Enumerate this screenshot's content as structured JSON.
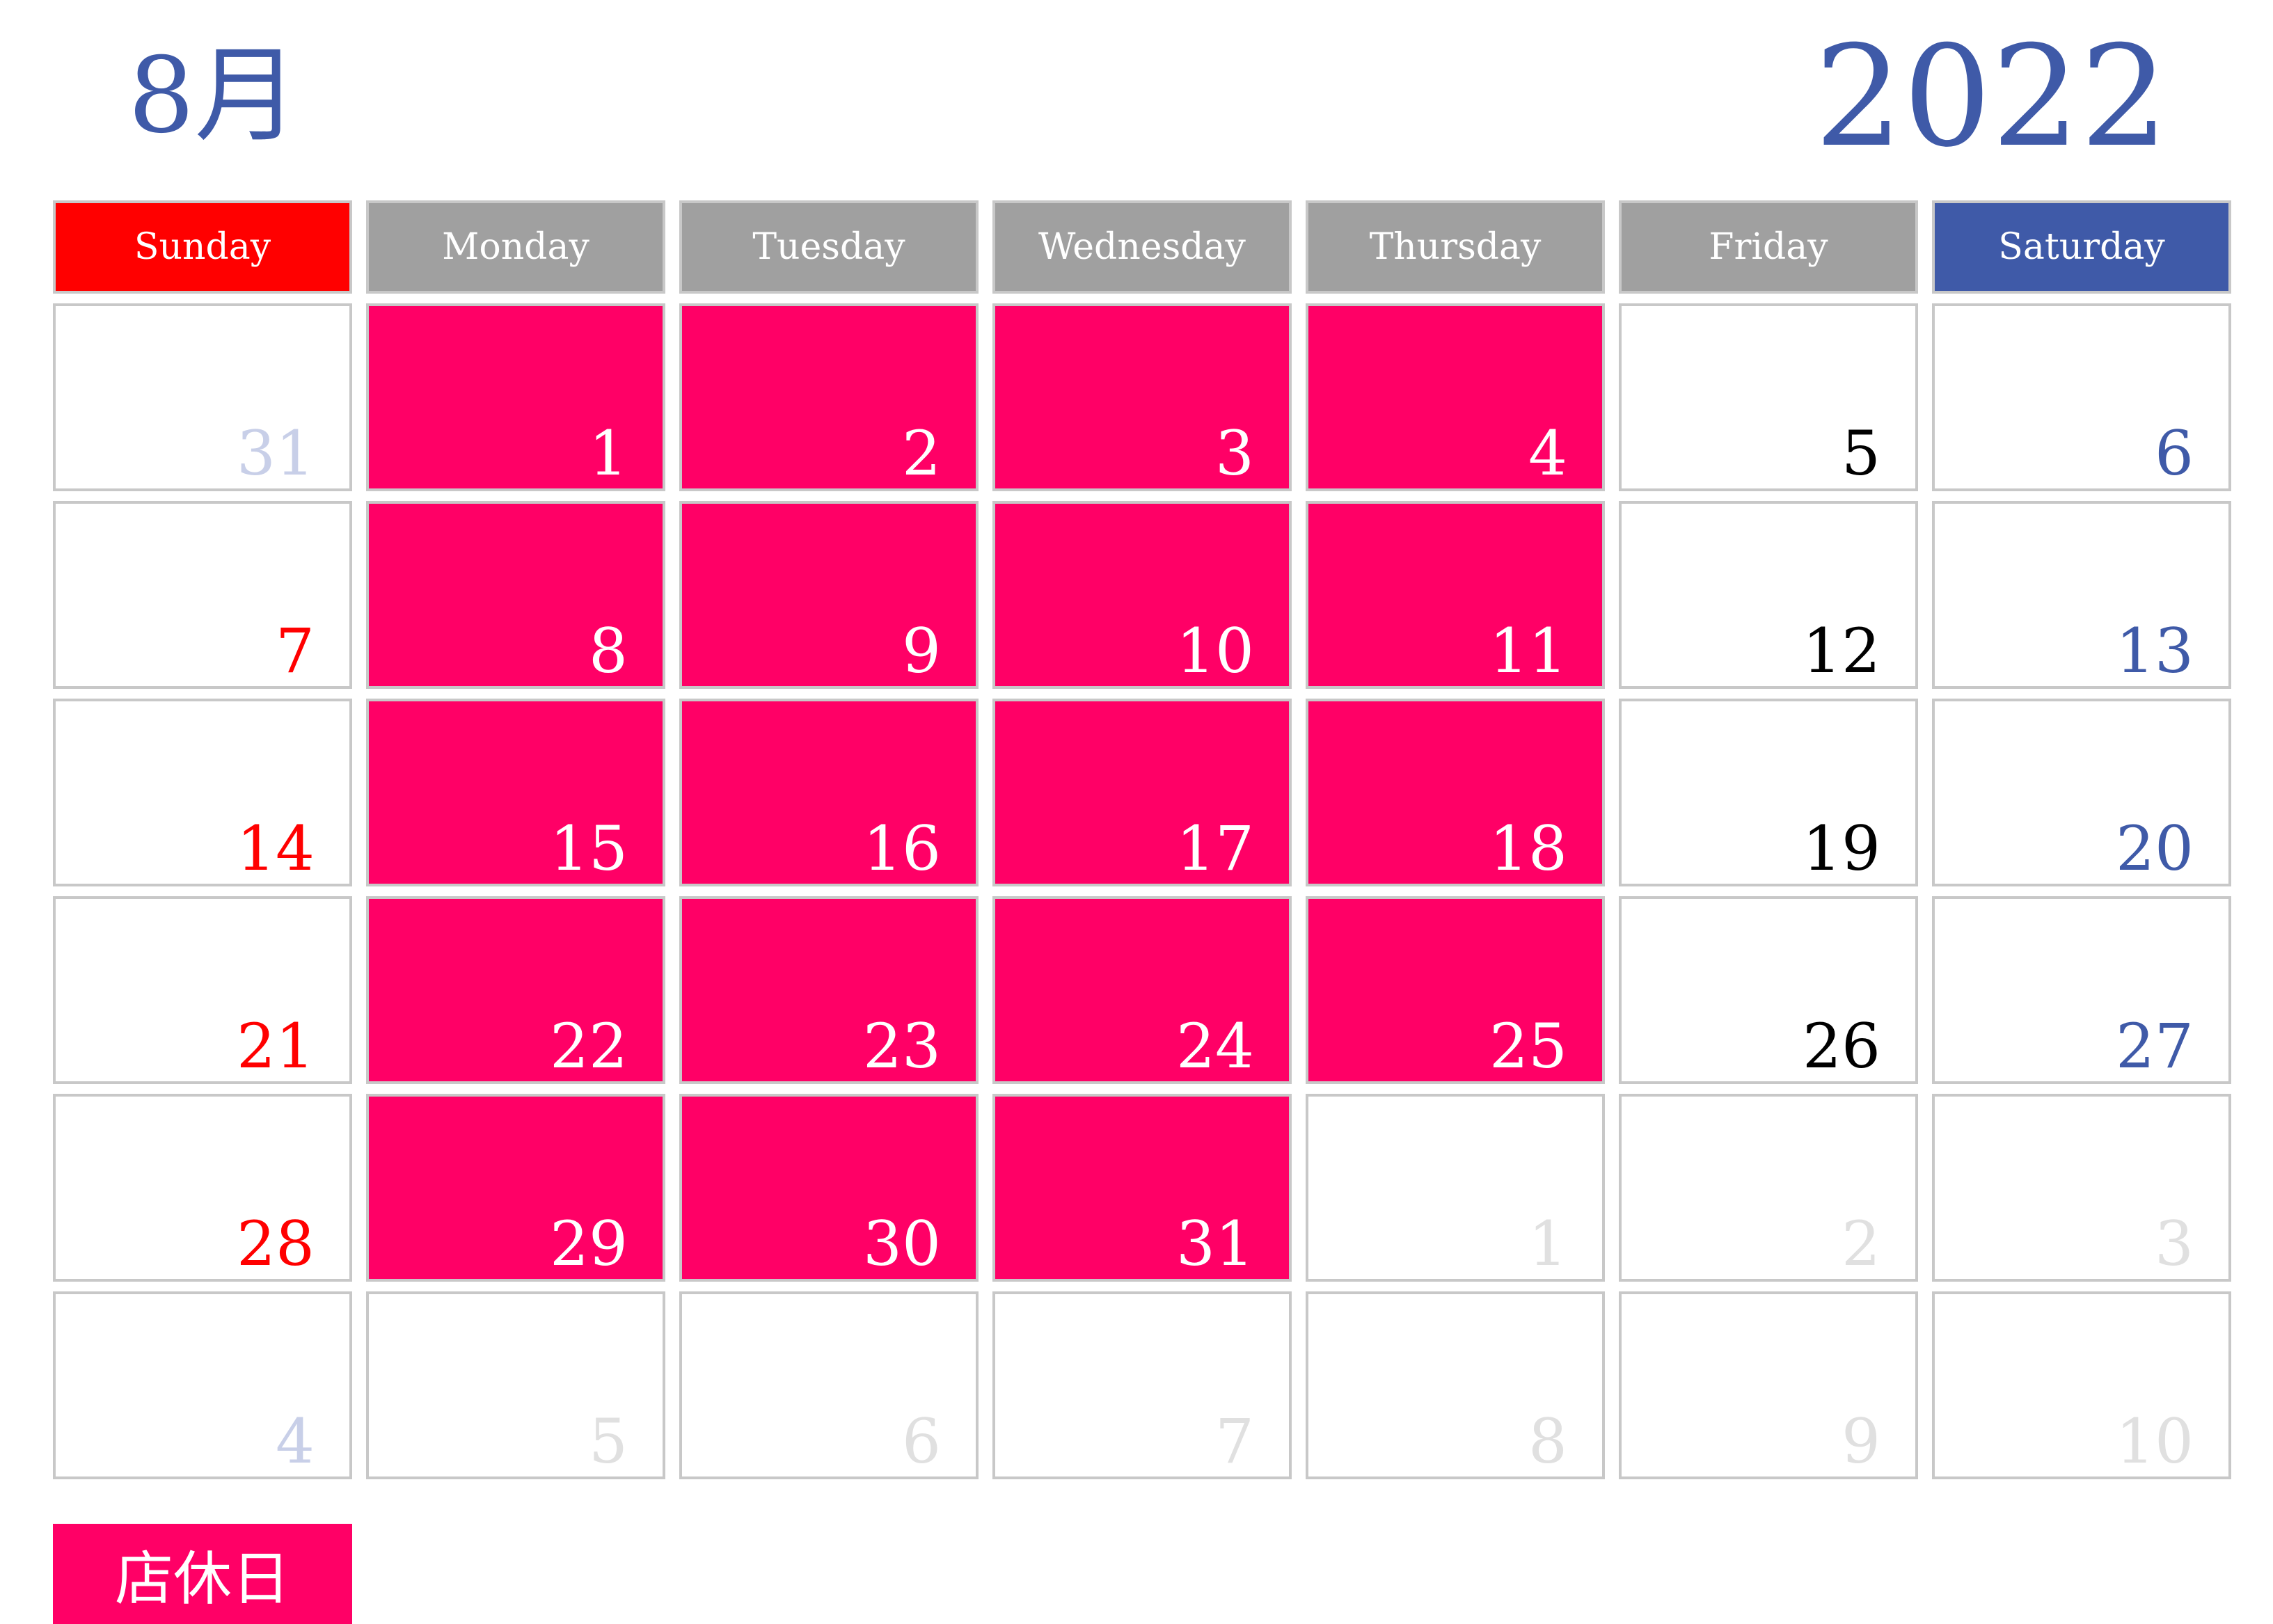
{
  "header": {
    "month": "8月",
    "year": "2022"
  },
  "weekdays": [
    "Sunday",
    "Monday",
    "Tuesday",
    "Wednesday",
    "Thursday",
    "Friday",
    "Saturday"
  ],
  "colors": {
    "title": "#3f5aa8",
    "sunday": "#ff0000",
    "saturday": "#3f5aa8",
    "closed_day": "#ff0066",
    "weekday_header": "#a0a0a0"
  },
  "weeks": [
    [
      {
        "day": "31",
        "state": "other-sun"
      },
      {
        "day": "1",
        "state": "closed"
      },
      {
        "day": "2",
        "state": "closed"
      },
      {
        "day": "3",
        "state": "closed"
      },
      {
        "day": "4",
        "state": "closed"
      },
      {
        "day": "5",
        "state": "weekday"
      },
      {
        "day": "6",
        "state": "saturday"
      }
    ],
    [
      {
        "day": "7",
        "state": "sunday"
      },
      {
        "day": "8",
        "state": "closed"
      },
      {
        "day": "9",
        "state": "closed"
      },
      {
        "day": "10",
        "state": "closed"
      },
      {
        "day": "11",
        "state": "closed"
      },
      {
        "day": "12",
        "state": "weekday"
      },
      {
        "day": "13",
        "state": "saturday"
      }
    ],
    [
      {
        "day": "14",
        "state": "sunday"
      },
      {
        "day": "15",
        "state": "closed"
      },
      {
        "day": "16",
        "state": "closed"
      },
      {
        "day": "17",
        "state": "closed"
      },
      {
        "day": "18",
        "state": "closed"
      },
      {
        "day": "19",
        "state": "weekday"
      },
      {
        "day": "20",
        "state": "saturday"
      }
    ],
    [
      {
        "day": "21",
        "state": "sunday"
      },
      {
        "day": "22",
        "state": "closed"
      },
      {
        "day": "23",
        "state": "closed"
      },
      {
        "day": "24",
        "state": "closed"
      },
      {
        "day": "25",
        "state": "closed"
      },
      {
        "day": "26",
        "state": "weekday"
      },
      {
        "day": "27",
        "state": "saturday"
      }
    ],
    [
      {
        "day": "28",
        "state": "sunday"
      },
      {
        "day": "29",
        "state": "closed"
      },
      {
        "day": "30",
        "state": "closed"
      },
      {
        "day": "31",
        "state": "closed"
      },
      {
        "day": "1",
        "state": "other"
      },
      {
        "day": "2",
        "state": "other"
      },
      {
        "day": "3",
        "state": "other"
      }
    ],
    [
      {
        "day": "4",
        "state": "other-sun"
      },
      {
        "day": "5",
        "state": "other"
      },
      {
        "day": "6",
        "state": "other"
      },
      {
        "day": "7",
        "state": "other"
      },
      {
        "day": "8",
        "state": "other"
      },
      {
        "day": "9",
        "state": "other"
      },
      {
        "day": "10",
        "state": "other"
      }
    ]
  ],
  "legend": {
    "label": "店休日"
  }
}
